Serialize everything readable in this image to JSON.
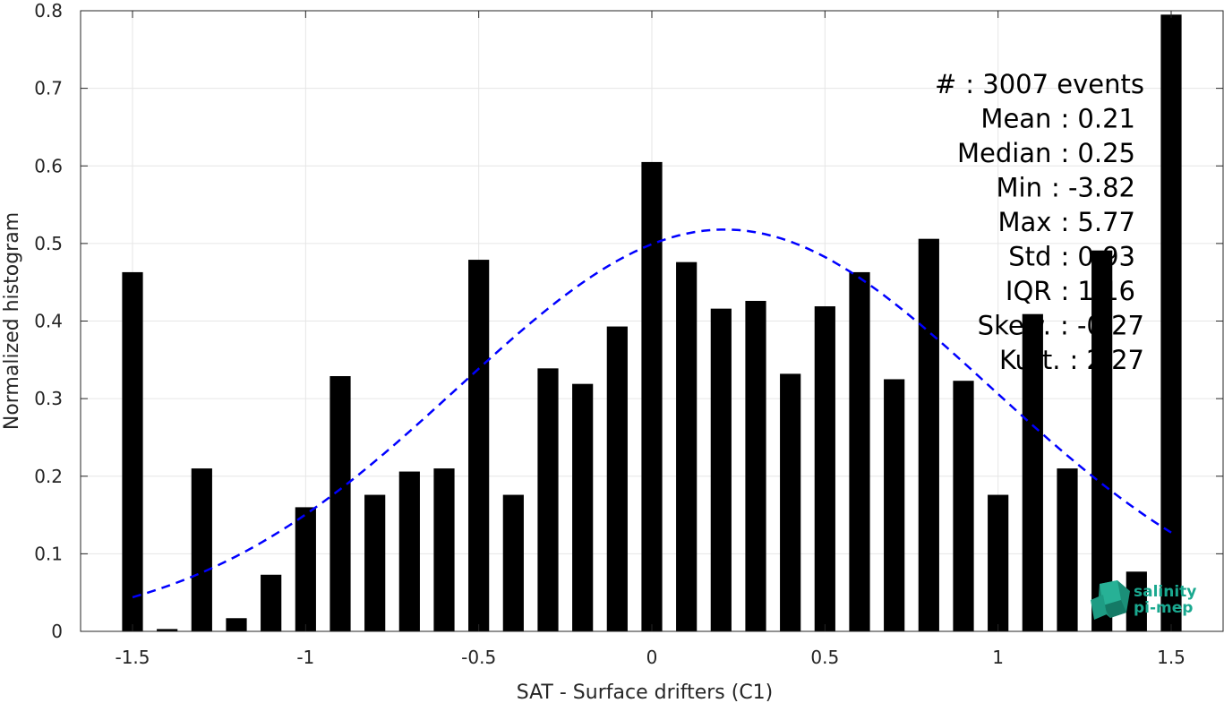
{
  "chart_data": {
    "type": "bar",
    "xlabel": "SAT - Surface drifters (C1)",
    "ylabel": "Normalized histogram",
    "xlim": [
      -1.65,
      1.65
    ],
    "ylim": [
      0,
      0.8
    ],
    "xticks": [
      "-1.5",
      "-1",
      "-0.5",
      "0",
      "0.5",
      "1",
      "1.5"
    ],
    "yticks": [
      "0",
      "0.1",
      "0.2",
      "0.3",
      "0.4",
      "0.5",
      "0.6",
      "0.7",
      "0.8"
    ],
    "grid": true,
    "bar_color": "#000000",
    "bar_width": 0.06,
    "x": [
      -1.5,
      -1.4,
      -1.3,
      -1.2,
      -1.1,
      -1.0,
      -0.9,
      -0.8,
      -0.7,
      -0.6,
      -0.5,
      -0.4,
      -0.3,
      -0.2,
      -0.1,
      0.0,
      0.1,
      0.2,
      0.3,
      0.4,
      0.5,
      0.6,
      0.7,
      0.8,
      0.9,
      1.0,
      1.1,
      1.2,
      1.3,
      1.4,
      1.5
    ],
    "values": [
      0.463,
      0.003,
      0.21,
      0.017,
      0.073,
      0.16,
      0.329,
      0.176,
      0.206,
      0.21,
      0.479,
      0.176,
      0.339,
      0.319,
      0.393,
      0.605,
      0.476,
      0.416,
      0.426,
      0.332,
      0.419,
      0.463,
      0.325,
      0.506,
      0.323,
      0.176,
      0.409,
      0.21,
      0.491,
      0.077,
      0.795
    ],
    "fit_curve": {
      "style": "dashed",
      "color": "#0000ff",
      "distribution": "normal",
      "mean": 0.21,
      "peak": 0.518,
      "sigma": 0.77,
      "x_range": [
        -1.5,
        1.5
      ]
    },
    "stats": [
      {
        "label": "#  ",
        "value": ": 3007 events"
      },
      {
        "label": "Mean",
        "value": ": 0.21"
      },
      {
        "label": "Median",
        "value": ": 0.25"
      },
      {
        "label": "Min",
        "value": ": -3.82"
      },
      {
        "label": "Max",
        "value": ": 5.77"
      },
      {
        "label": "Std",
        "value": ": 0.93"
      },
      {
        "label": "IQR",
        "value": ": 1.16"
      },
      {
        "label": "Skew.",
        "value": ": -0.27"
      },
      {
        "label": "Kurt.",
        "value": ": 2.27"
      }
    ]
  },
  "logo": {
    "line1": "salinity",
    "line2": "pi-mep",
    "color": "#1aa88f"
  }
}
